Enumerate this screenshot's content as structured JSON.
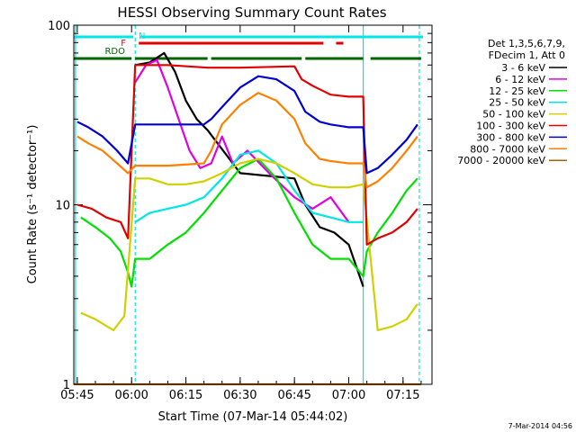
{
  "chart_data": {
    "type": "line",
    "title": "HESSI Observing Summary Count Rates",
    "xlabel": "Start Time (07-Mar-14 05:44:02)",
    "ylabel": "Count Rate (s⁻¹ detector⁻¹)",
    "yscale": "log",
    "ylim": [
      1,
      100
    ],
    "xlim": [
      "05:44:02",
      "07:23:00"
    ],
    "x_ticks": [
      "05:45",
      "06:00",
      "06:15",
      "06:30",
      "06:45",
      "07:00",
      "07:15"
    ],
    "y_ticks": [
      "1",
      "10",
      "100"
    ],
    "timestamp": "7-Mar-2014 04:56",
    "legend": {
      "header": [
        "Det 1,3,5,6,7,9,",
        "FDecim 1, Att 0"
      ],
      "position": "right"
    },
    "flags": [
      {
        "label": "N",
        "color": "#00e5e5",
        "segments": [
          [
            "05:44:02",
            "06:00:30"
          ],
          [
            "06:02:30",
            "07:05:00"
          ],
          [
            "07:05:00",
            "07:20:30"
          ]
        ]
      },
      {
        "label": "F",
        "color": "#e00000",
        "segments": [
          [
            "06:02:00",
            "06:53:00"
          ],
          [
            "06:56:30",
            "06:58:30"
          ]
        ]
      },
      {
        "label": "RDO",
        "color": "#006400",
        "segments": [
          [
            "05:44:02",
            "06:00:00"
          ],
          [
            "06:01:00",
            "06:21:00"
          ],
          [
            "06:22:00",
            "06:47:00"
          ],
          [
            "06:48:00",
            "07:04:00"
          ],
          [
            "07:06:00",
            "07:20:00"
          ]
        ]
      }
    ],
    "marker_lines": [
      "05:44:30",
      "06:01:00",
      "07:04:00",
      "07:19:30"
    ],
    "series": [
      {
        "name": "3 - 6 keV",
        "color": "#000000",
        "x": [
          "06:01",
          "06:05",
          "06:09",
          "06:12",
          "06:15",
          "06:18",
          "06:21",
          "06:30",
          "06:45",
          "06:48",
          "06:52",
          "06:56",
          "07:00",
          "07:03",
          "07:04"
        ],
        "y": [
          60,
          62,
          70,
          55,
          38,
          30,
          26,
          15,
          14,
          10,
          7.5,
          7,
          6,
          4,
          3.5
        ]
      },
      {
        "name": "6 - 12 keV",
        "color": "#e000e0",
        "x": [
          "06:01",
          "06:04",
          "06:07",
          "06:10",
          "06:13",
          "06:16",
          "06:19",
          "06:22",
          "06:25",
          "06:28",
          "06:32",
          "06:38",
          "06:45",
          "06:50",
          "06:55",
          "07:00"
        ],
        "y": [
          48,
          60,
          64,
          45,
          30,
          20,
          16,
          17,
          24,
          17,
          20,
          15,
          11,
          9.5,
          11,
          8
        ]
      },
      {
        "name": "12 - 25 keV",
        "color": "#00e000",
        "x": [
          "05:46",
          "05:50",
          "05:54",
          "05:57",
          "05:59",
          "06:00",
          "06:01",
          "06:05",
          "06:10",
          "06:15",
          "06:20",
          "06:25",
          "06:30",
          "06:35",
          "06:40",
          "06:45",
          "06:50",
          "06:55",
          "07:00",
          "07:04",
          "07:05",
          "07:08",
          "07:12",
          "07:16",
          "07:19"
        ],
        "y": [
          8.5,
          7.5,
          6.5,
          5.5,
          4.2,
          3.5,
          5,
          5,
          6,
          7,
          9,
          12,
          16,
          18,
          14,
          9,
          6,
          5,
          5,
          4,
          5.5,
          7,
          9,
          12,
          14
        ]
      },
      {
        "name": "25 - 50 keV",
        "color": "#00e5e5",
        "x": [
          "06:01",
          "06:05",
          "06:10",
          "06:15",
          "06:20",
          "06:25",
          "06:30",
          "06:35",
          "06:40",
          "06:45",
          "06:50",
          "06:55",
          "07:00",
          "07:04"
        ],
        "y": [
          8,
          9,
          9.5,
          10,
          11,
          14,
          19,
          20,
          17,
          12,
          9,
          8.5,
          8,
          8
        ]
      },
      {
        "name": "50 - 100 keV",
        "color": "#d0d000",
        "x": [
          "05:46",
          "05:50",
          "05:55",
          "05:58",
          "06:01",
          "06:05",
          "06:10",
          "06:15",
          "06:20",
          "06:25",
          "06:30",
          "06:35",
          "06:40",
          "06:45",
          "06:50",
          "06:55",
          "07:00",
          "07:04",
          "07:08",
          "07:12",
          "07:16",
          "07:19"
        ],
        "y": [
          2.5,
          2.3,
          2.0,
          2.4,
          14,
          14,
          13,
          13,
          13.5,
          15,
          17,
          18,
          17,
          15,
          13,
          12.5,
          12.5,
          13,
          2,
          2.1,
          2.3,
          2.8
        ]
      },
      {
        "name": "100 - 300 keV",
        "color": "#e00000",
        "x": [
          "05:45",
          "05:49",
          "05:53",
          "05:57",
          "05:59",
          "06:01",
          "06:10",
          "06:21",
          "06:30",
          "06:45",
          "06:47",
          "06:50",
          "06:55",
          "07:00",
          "07:04",
          "07:05",
          "07:08",
          "07:12",
          "07:16",
          "07:19"
        ],
        "y": [
          10,
          9.5,
          8.5,
          8,
          6.5,
          60,
          60,
          58,
          58,
          59,
          50,
          46,
          41,
          40,
          40,
          6,
          6.5,
          7,
          8,
          9.5
        ]
      },
      {
        "name": "300 - 800 keV",
        "color": "#0000d0",
        "x": [
          "05:45",
          "05:48",
          "05:52",
          "05:56",
          "05:59",
          "06:01",
          "06:10",
          "06:20",
          "06:22",
          "06:25",
          "06:30",
          "06:35",
          "06:40",
          "06:45",
          "06:48",
          "06:52",
          "06:55",
          "07:00",
          "07:04",
          "07:05",
          "07:08",
          "07:12",
          "07:16",
          "07:19"
        ],
        "y": [
          29,
          27,
          24,
          20,
          17,
          28,
          28,
          28,
          30,
          35,
          45,
          52,
          50,
          43,
          33,
          29,
          28,
          27,
          27,
          15,
          16,
          19,
          23,
          28
        ]
      },
      {
        "name": "800 - 7000 keV",
        "color": "#ff8000",
        "x": [
          "05:45",
          "05:48",
          "05:52",
          "05:56",
          "05:59",
          "06:01",
          "06:10",
          "06:20",
          "06:22",
          "06:25",
          "06:30",
          "06:35",
          "06:40",
          "06:45",
          "06:48",
          "06:52",
          "06:55",
          "07:00",
          "07:04",
          "07:05",
          "07:08",
          "07:12",
          "07:16",
          "07:19"
        ],
        "y": [
          24,
          22,
          20,
          17,
          15,
          16.5,
          16.5,
          17,
          20,
          28,
          36,
          42,
          38,
          30,
          22,
          18,
          17.5,
          17,
          17,
          12.5,
          13.5,
          16,
          20,
          24
        ]
      },
      {
        "name": "7000 - 20000 keV",
        "color": "#b06000",
        "x": [
          "05:44:02",
          "07:20"
        ],
        "y": [
          1,
          1
        ]
      }
    ]
  }
}
